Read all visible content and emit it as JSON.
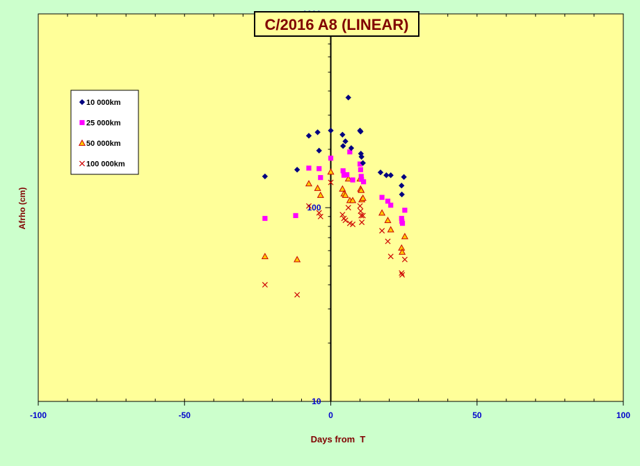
{
  "chart_data": {
    "type": "scatter",
    "title": "C/2016 A8 (LINEAR)",
    "xlabel": "Days from  T",
    "ylabel": "Afrho (cm)",
    "xlim": [
      -100,
      100
    ],
    "ylim": [
      10,
      1000
    ],
    "yscale": "log",
    "x_ticks": [
      -100,
      -50,
      0,
      50,
      100
    ],
    "y_ticks": [
      10,
      100,
      1000
    ],
    "legend_position": "upper-left",
    "colors": {
      "page_background": "#ccffcc",
      "plot_background": "#ffff99",
      "title_background": "#ffff99",
      "title_text": "#800000",
      "axis_label": "#800000",
      "tick_label": "#0000cc",
      "axis_line": "#000000"
    },
    "series": [
      {
        "name": "10 000km",
        "marker": "diamond",
        "color": "#000080",
        "points": [
          [
            -22.5,
            145
          ],
          [
            -11.5,
            157
          ],
          [
            -7.5,
            235
          ],
          [
            -4.5,
            245
          ],
          [
            -4,
            197
          ],
          [
            0,
            250
          ],
          [
            4,
            238
          ],
          [
            4.2,
            208
          ],
          [
            5,
            220
          ],
          [
            6,
            370
          ],
          [
            7,
            203
          ],
          [
            10,
            250
          ],
          [
            10.2,
            247
          ],
          [
            10.3,
            190
          ],
          [
            10.5,
            183
          ],
          [
            11,
            170
          ],
          [
            17,
            152
          ],
          [
            19,
            147
          ],
          [
            20.5,
            147
          ],
          [
            24.2,
            130
          ],
          [
            24.3,
            117
          ],
          [
            25,
            144
          ]
        ]
      },
      {
        "name": "25 000km",
        "marker": "square",
        "color": "#ff00ff",
        "points": [
          [
            -22.5,
            88
          ],
          [
            -12,
            91
          ],
          [
            -7.5,
            160
          ],
          [
            -4,
            159
          ],
          [
            -3.5,
            143
          ],
          [
            0,
            180
          ],
          [
            4.2,
            155
          ],
          [
            4.5,
            147
          ],
          [
            5.5,
            148
          ],
          [
            6.5,
            194
          ],
          [
            7.5,
            139
          ],
          [
            10,
            168
          ],
          [
            10.2,
            157
          ],
          [
            10.4,
            145
          ],
          [
            10.5,
            140
          ],
          [
            11.2,
            136
          ],
          [
            17.5,
            113
          ],
          [
            19.5,
            108
          ],
          [
            20.5,
            103
          ],
          [
            24.2,
            88
          ],
          [
            24.3,
            85
          ],
          [
            24.5,
            83
          ],
          [
            25.3,
            97
          ]
        ]
      },
      {
        "name": "50 000km",
        "marker": "triangle",
        "color": "#cc0000",
        "fill": "#ffcc00",
        "points": [
          [
            -22.5,
            56
          ],
          [
            -11.5,
            54
          ],
          [
            -7.5,
            133
          ],
          [
            -4.5,
            126
          ],
          [
            -3.5,
            116
          ],
          [
            0,
            153
          ],
          [
            4,
            125
          ],
          [
            4.5,
            118
          ],
          [
            5,
            116
          ],
          [
            6,
            141
          ],
          [
            6.5,
            109
          ],
          [
            7.5,
            109
          ],
          [
            10,
            141
          ],
          [
            10.2,
            125
          ],
          [
            10.4,
            123
          ],
          [
            10.6,
            110
          ],
          [
            11,
            112
          ],
          [
            17.5,
            94
          ],
          [
            19.5,
            86
          ],
          [
            20.5,
            77
          ],
          [
            24.2,
            62
          ],
          [
            24.4,
            59
          ],
          [
            25.3,
            71
          ]
        ]
      },
      {
        "name": "100 000km",
        "marker": "x",
        "color": "#cc0000",
        "points": [
          [
            -22.5,
            40
          ],
          [
            -11.5,
            35.5
          ],
          [
            -7.5,
            102
          ],
          [
            -4,
            94
          ],
          [
            -3.5,
            90
          ],
          [
            0,
            135
          ],
          [
            4,
            92
          ],
          [
            4.5,
            88
          ],
          [
            5,
            86
          ],
          [
            6,
            100
          ],
          [
            6.5,
            83
          ],
          [
            7.5,
            82
          ],
          [
            10,
            102
          ],
          [
            10.2,
            96
          ],
          [
            10.4,
            91
          ],
          [
            10.6,
            84
          ],
          [
            11,
            91
          ],
          [
            17.5,
            76
          ],
          [
            19.5,
            67
          ],
          [
            20.5,
            56
          ],
          [
            24.2,
            46
          ],
          [
            24.4,
            45
          ],
          [
            25.3,
            54
          ]
        ]
      }
    ]
  }
}
